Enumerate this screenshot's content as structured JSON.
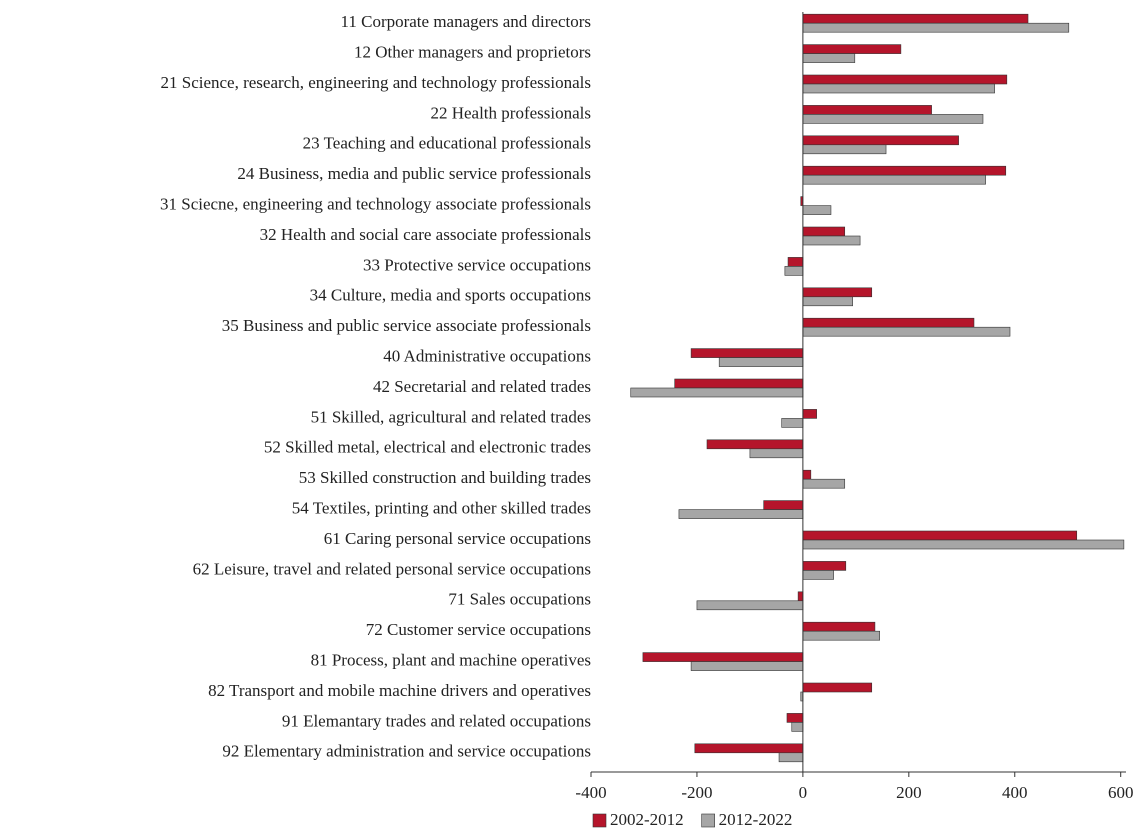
{
  "chart_data": {
    "type": "hbar",
    "categories": [
      "11 Corporate managers and directors",
      "12 Other managers and proprietors",
      "21 Science, research, engineering and technology professionals",
      "22 Health professionals",
      "23 Teaching and educational professionals",
      "24 Business, media and public service professionals",
      "31 Sciecne, engineering and technology associate professionals",
      "32 Health and social care associate professionals",
      "33 Protective service occupations",
      "34 Culture, media and sports occupations",
      "35 Business and public service associate professionals",
      "40 Administrative occupations",
      "42 Secretarial and related trades",
      "51 Skilled, agricultural and related trades",
      "52 Skilled metal, electrical and electronic trades",
      "53 Skilled construction and building trades",
      "54 Textiles, printing and other skilled trades",
      "61 Caring personal service occupations",
      "62 Leisure, travel and related personal service occupations",
      "71 Sales occupations",
      "72 Customer service occupations",
      "81 Process, plant and machine operatives",
      "82 Transport and mobile machine drivers and operatives",
      "91 Elemantary trades and related occupations",
      "92 Elementary administration and service occupations"
    ],
    "series": [
      {
        "name": "2002-2012",
        "color": "#b5152b",
        "values": [
          425,
          185,
          385,
          243,
          294,
          383,
          -4,
          79,
          -28,
          130,
          323,
          -211,
          -242,
          26,
          -181,
          15,
          -74,
          517,
          81,
          -9,
          136,
          -302,
          130,
          -30,
          -204
        ]
      },
      {
        "name": "2012-2022",
        "color": "#a6a6a6",
        "values": [
          502,
          98,
          362,
          340,
          157,
          345,
          53,
          108,
          -34,
          94,
          391,
          -158,
          -325,
          -40,
          -100,
          79,
          -234,
          606,
          58,
          -200,
          145,
          -211,
          -4,
          -21,
          -45
        ]
      }
    ],
    "xlim": [
      -400,
      610
    ],
    "xticks": [
      -400,
      -200,
      0,
      200,
      400,
      600
    ],
    "legend": "bottom"
  }
}
